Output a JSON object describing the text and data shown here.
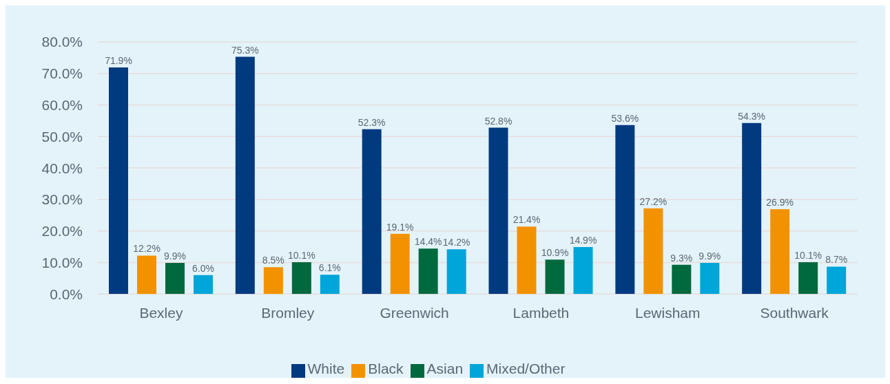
{
  "chart_data": {
    "type": "bar",
    "categories": [
      "Bexley",
      "Bromley",
      "Greenwich",
      "Lambeth",
      "Lewisham",
      "Southwark"
    ],
    "series": [
      {
        "name": "White",
        "color": "#023a80",
        "values": [
          71.9,
          75.3,
          52.3,
          52.8,
          53.6,
          54.3
        ],
        "value_labels": [
          "71.9%",
          "75.3%",
          "52.3%",
          "52.8%",
          "53.6%",
          "54.3%"
        ]
      },
      {
        "name": "Black",
        "color": "#f39200",
        "values": [
          12.2,
          8.5,
          19.1,
          21.4,
          27.2,
          26.9
        ],
        "value_labels": [
          "12.2%",
          "8.5%",
          "19.1%",
          "21.4%",
          "27.2%",
          "26.9%"
        ]
      },
      {
        "name": "Asian",
        "color": "#00693e",
        "values": [
          9.9,
          10.1,
          14.4,
          10.9,
          9.3,
          10.1
        ],
        "value_labels": [
          "9.9%",
          "10.1%",
          "14.4%",
          "10.9%",
          "9.3%",
          "10.1%"
        ]
      },
      {
        "name": "Mixed/Other",
        "color": "#00a5d9",
        "values": [
          6.0,
          6.1,
          14.2,
          14.9,
          9.9,
          8.7
        ],
        "value_labels": [
          "6.0%",
          "6.1%",
          "14.2%",
          "14.9%",
          "9.9%",
          "8.7%"
        ]
      }
    ],
    "ylim": [
      0,
      80
    ],
    "yticks": [
      {
        "value": 0,
        "label": "0.0%"
      },
      {
        "value": 10,
        "label": "10.0%"
      },
      {
        "value": 20,
        "label": "20.0%"
      },
      {
        "value": 30,
        "label": "30.0%"
      },
      {
        "value": 40,
        "label": "40.0%"
      },
      {
        "value": 50,
        "label": "50.0%"
      },
      {
        "value": 60,
        "label": "60.0%"
      },
      {
        "value": 70,
        "label": "70.0%"
      },
      {
        "value": 80,
        "label": "80.0%"
      }
    ],
    "grid": "y",
    "legend": "bottom"
  }
}
